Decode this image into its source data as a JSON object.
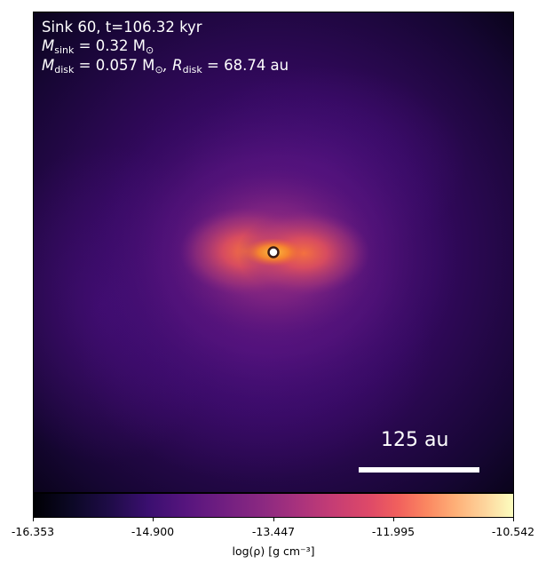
{
  "overlay": {
    "sink_line": "Sink 60, t=106.32 kyr",
    "m_sink_symbol": "M",
    "m_sink_sub": "sink",
    "m_sink_value": " = 0.32 M",
    "m_sink_unit_sub": "⊙",
    "m_disk_symbol": "M",
    "m_disk_sub": "disk",
    "m_disk_value": " = 0.057 M",
    "m_disk_unit_sub": "⊙",
    "r_disk_symbol": ", R",
    "r_disk_sub": "disk",
    "r_disk_value": " = 68.74 au"
  },
  "scale_bar": {
    "label": "125 au"
  },
  "colorbar": {
    "ticks": [
      "-16.353",
      "-14.900",
      "-13.447",
      "-11.995",
      "-10.542"
    ],
    "label": "log(ρ) [g cm⁻³]",
    "colormap": "inferno",
    "colors": [
      "#000004",
      "#3b0f70",
      "#8c2981",
      "#de4968",
      "#fb8761",
      "#fcfdbf"
    ]
  },
  "chart_data": {
    "type": "heatmap",
    "title": "Sink 60, t=106.32 kyr",
    "colorbar_label": "log(ρ) [g cm⁻³]",
    "colorbar_range": [
      -16.353,
      -10.542
    ],
    "colorbar_ticks": [
      -16.353,
      -14.9,
      -13.447,
      -11.995,
      -10.542
    ],
    "colormap": "inferno",
    "scale_bar": "125 au",
    "sink_mass": "0.32 M⊙",
    "disk_mass": "0.057 M⊙",
    "disk_radius": "68.74 au"
  }
}
